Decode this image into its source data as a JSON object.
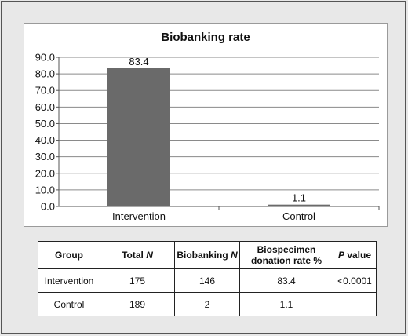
{
  "chart_data": {
    "type": "bar",
    "title": "Biobanking rate",
    "categories": [
      "Intervention",
      "Control"
    ],
    "values": [
      83.4,
      1.1
    ],
    "data_labels": [
      "83.4",
      "1.1"
    ],
    "ylim": [
      0,
      90
    ],
    "yticks": [
      "0.0",
      "10.0",
      "20.0",
      "30.0",
      "40.0",
      "50.0",
      "60.0",
      "70.0",
      "80.0",
      "90.0"
    ],
    "xlabel": "",
    "ylabel": "",
    "grid": true,
    "bar_color": "#6a6a6a"
  },
  "table": {
    "headers": [
      {
        "text": "Group",
        "italic_part": ""
      },
      {
        "text": "Total ",
        "italic_part": "N"
      },
      {
        "text": "Biobanking ",
        "italic_part": "N"
      },
      {
        "text": "Biospecimen donation rate %",
        "italic_part": ""
      },
      {
        "text": " value",
        "italic_lead": "P"
      }
    ],
    "rows": [
      [
        "Intervention",
        "175",
        "146",
        "83.4",
        "<0.0001"
      ],
      [
        "Control",
        "189",
        "2",
        "1.1",
        ""
      ]
    ]
  }
}
